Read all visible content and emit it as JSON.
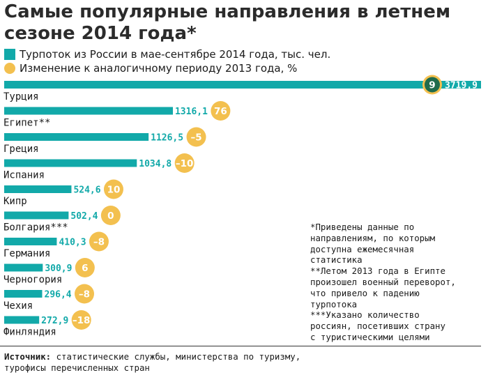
{
  "title": "Самые популярные направления в летнем сезоне 2014 года*",
  "legend": {
    "bars": "Турпоток из России в мае-сентябре 2014 года, тыс. чел.",
    "circles": "Изменение к аналогичному периоду 2013 года, %"
  },
  "colors": {
    "bar": "#12a9a9",
    "circle": "#f3c04f",
    "circle_dark": "#1f6b4c",
    "bar_label": "#12a9a9"
  },
  "chart_data": {
    "type": "bar",
    "orientation": "horizontal",
    "title": "Самые популярные направления в летнем сезоне 2014 года*",
    "categories": [
      "Турция",
      "Египет**",
      "Греция",
      "Испания",
      "Кипр",
      "Болгария***",
      "Германия",
      "Черногория",
      "Чехия",
      "Финляндия"
    ],
    "series": [
      {
        "name": "Турпоток из России в мае-сентябре 2014 года, тыс. чел.",
        "values": [
          3719.9,
          1316.1,
          1126.5,
          1034.8,
          524.6,
          502.4,
          410.3,
          300.9,
          296.4,
          272.9
        ],
        "labels": [
          "3719,9",
          "1316,1",
          "1126,5",
          "1034,8",
          "524,6",
          "502,4",
          "410,3",
          "300,9",
          "296,4",
          "272,9"
        ]
      },
      {
        "name": "Изменение к аналогичному периоду 2013 года, %",
        "values": [
          9,
          76,
          -5,
          -10,
          10,
          0,
          -8,
          6,
          -8,
          -18
        ],
        "labels": [
          "9",
          "76",
          "–5",
          "–10",
          "10",
          "0",
          "–8",
          "6",
          "–8",
          "–18"
        ]
      }
    ],
    "xlim": [
      0,
      3719.9
    ]
  },
  "footnotes": [
    "*Приведены данные по",
    "направлениям, по которым",
    "доступна ежемесячная",
    "статистика",
    "**Летом 2013 года в Египте",
    "произошел военный переворот,",
    "что привело к падению",
    "турпотока",
    "***Указано количество",
    "россиян, посетивших страну",
    "с туристическими целями"
  ],
  "source": {
    "label": "Источник:",
    "text": " статистические службы, министерства по туризму,",
    "text2": "турофисы перечисленных стран"
  }
}
